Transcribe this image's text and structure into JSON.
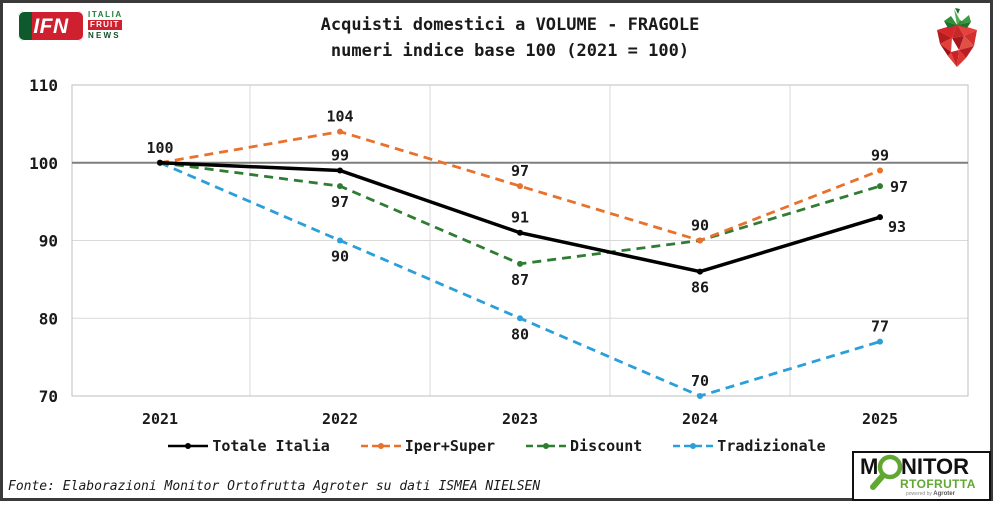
{
  "header": {
    "logo": {
      "ifn": "IFN",
      "italia": "ITALIA",
      "fruit": "FRUIT",
      "news": "NEWS"
    },
    "title_line1": "Acquisti domestici a VOLUME - FRAGOLE",
    "title_line2": "numeri indice base 100 (2021 = 100)"
  },
  "chart_data": {
    "type": "line",
    "title": "Acquisti domestici a VOLUME - FRAGOLE",
    "subtitle": "numeri indice base 100 (2021 = 100)",
    "categories": [
      "2021",
      "2022",
      "2023",
      "2024",
      "2025"
    ],
    "y_ticks": [
      70,
      80,
      90,
      100,
      110
    ],
    "ylim": [
      70,
      110
    ],
    "reference_line": 100,
    "grid": true,
    "legend_position": "bottom",
    "colors": {
      "grid_light": "#D9D9D9",
      "plot_border": "#BFBFBF",
      "reference": "#7F7F7F",
      "text": "#1a1a1a"
    },
    "series": [
      {
        "name": "Totale Italia",
        "color": "#000000",
        "dash": "solid",
        "values": [
          100,
          99,
          91,
          86,
          93
        ]
      },
      {
        "name": "Iper+Super",
        "color": "#E8712C",
        "dash": "dashed",
        "values": [
          100,
          104,
          97,
          90,
          99
        ]
      },
      {
        "name": "Discount",
        "color": "#2E7D32",
        "dash": "dashed",
        "values": [
          100,
          97,
          87,
          90,
          97
        ]
      },
      {
        "name": "Tradizionale",
        "color": "#2B9FD9",
        "dash": "dashed",
        "values": [
          100,
          90,
          80,
          70,
          77
        ]
      }
    ],
    "point_labels": [
      {
        "series": 0,
        "i": 0,
        "text": "100",
        "pos": "above"
      },
      {
        "series": 1,
        "i": 1,
        "text": "104",
        "pos": "above"
      },
      {
        "series": 0,
        "i": 1,
        "text": "99",
        "pos": "above"
      },
      {
        "series": 2,
        "i": 1,
        "text": "97",
        "pos": "below"
      },
      {
        "series": 3,
        "i": 1,
        "text": "90",
        "pos": "below"
      },
      {
        "series": 1,
        "i": 2,
        "text": "97",
        "pos": "above"
      },
      {
        "series": 0,
        "i": 2,
        "text": "91",
        "pos": "above"
      },
      {
        "series": 2,
        "i": 2,
        "text": "87",
        "pos": "below"
      },
      {
        "series": 3,
        "i": 2,
        "text": "80",
        "pos": "below"
      },
      {
        "series": 1,
        "i": 3,
        "text": "90",
        "pos": "above"
      },
      {
        "series": 0,
        "i": 3,
        "text": "86",
        "pos": "below"
      },
      {
        "series": 3,
        "i": 3,
        "text": "70",
        "pos": "above"
      },
      {
        "series": 1,
        "i": 4,
        "text": "99",
        "pos": "above"
      },
      {
        "series": 2,
        "i": 4,
        "text": "97",
        "pos": "right"
      },
      {
        "series": 0,
        "i": 4,
        "text": "93",
        "pos": "below-right"
      },
      {
        "series": 3,
        "i": 4,
        "text": "77",
        "pos": "above"
      }
    ]
  },
  "footer": {
    "source": "Fonte: Elaborazioni Monitor Ortofrutta Agroter su dati ISMEA NIELSEN"
  },
  "monitor_logo": {
    "m": "M",
    "nitor": "NITOR",
    "rtofrutta": "RTOFRUTTA",
    "powered_by": "powered by",
    "brand": "Agroter",
    "green": "#61a832"
  }
}
